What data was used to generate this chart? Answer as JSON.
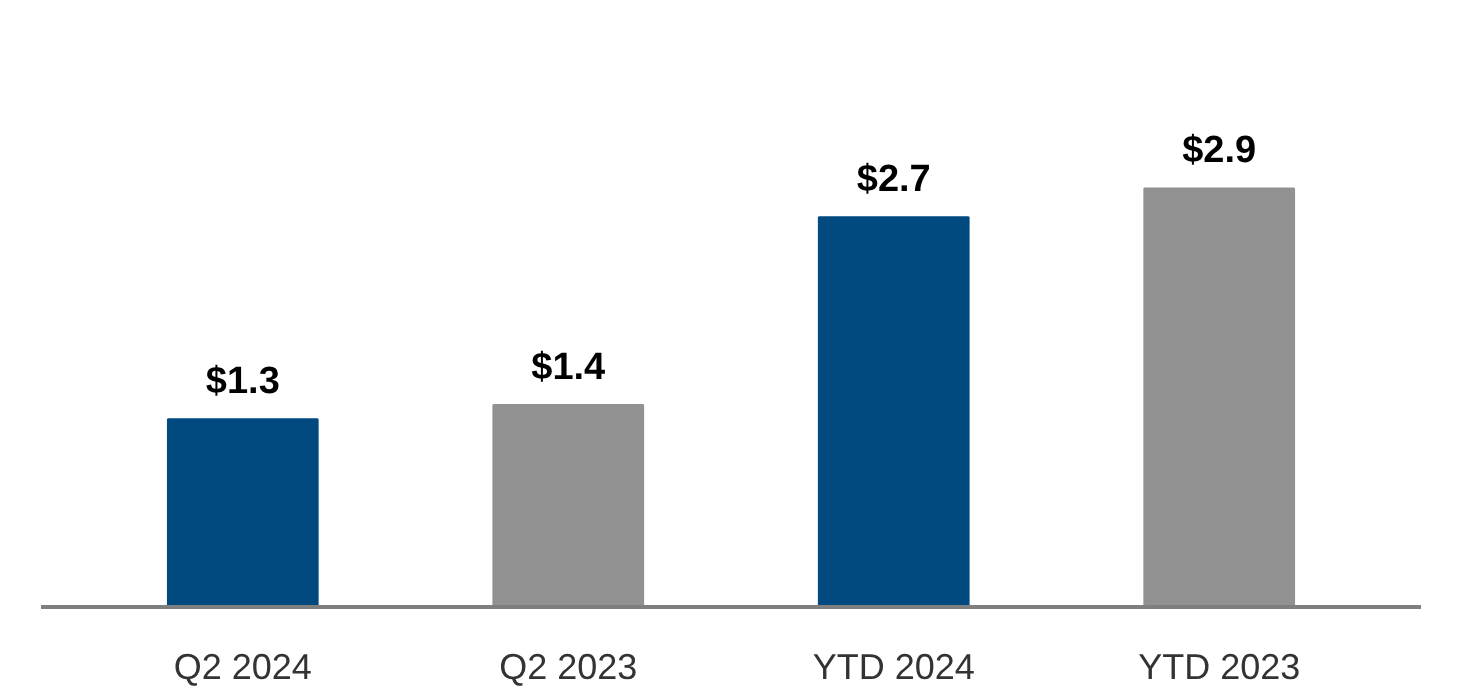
{
  "chart_data": {
    "type": "bar",
    "categories": [
      "Q2 2024",
      "Q2 2023",
      "YTD 2024",
      "YTD 2023"
    ],
    "values": [
      1.3,
      1.4,
      2.7,
      2.9
    ],
    "colors": [
      "#004a80",
      "#919191",
      "#004a80",
      "#919191"
    ],
    "value_labels": [
      "$1.3",
      "$1.4",
      "$2.7",
      "$2.9"
    ]
  }
}
